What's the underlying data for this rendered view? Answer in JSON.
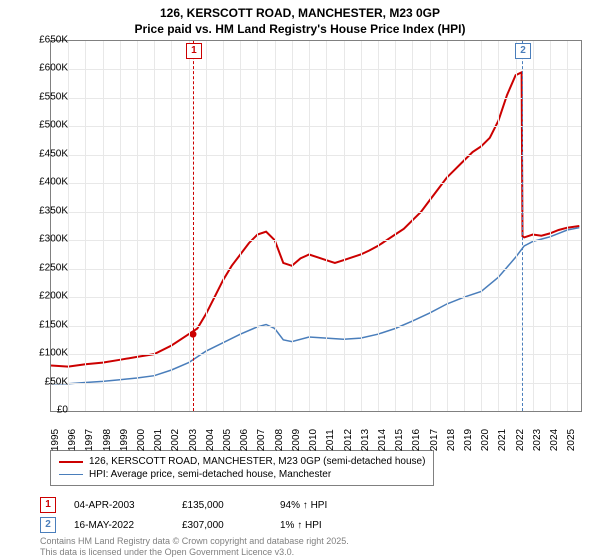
{
  "title_line1": "126, KERSCOTT ROAD, MANCHESTER, M23 0GP",
  "title_line2": "Price paid vs. HM Land Registry's House Price Index (HPI)",
  "chart": {
    "type": "line",
    "xlim": [
      1995,
      2025.8
    ],
    "ylim": [
      0,
      650
    ],
    "ytick_step": 50,
    "y_prefix": "£",
    "y_suffix": "K",
    "xticks": [
      1995,
      1996,
      1997,
      1998,
      1999,
      2000,
      2001,
      2002,
      2003,
      2004,
      2005,
      2006,
      2007,
      2008,
      2009,
      2010,
      2011,
      2012,
      2013,
      2014,
      2015,
      2016,
      2017,
      2018,
      2019,
      2020,
      2021,
      2022,
      2023,
      2024,
      2025
    ],
    "background_color": "#ffffff",
    "grid_color": "#e8e8e8",
    "border_color": "#808080",
    "series": [
      {
        "name": "price_paid",
        "color": "#cc0000",
        "width": 2,
        "data": [
          [
            1995,
            80
          ],
          [
            1996,
            78
          ],
          [
            1997,
            82
          ],
          [
            1998,
            85
          ],
          [
            1999,
            90
          ],
          [
            2000,
            95
          ],
          [
            2001,
            100
          ],
          [
            2002,
            115
          ],
          [
            2003,
            135
          ],
          [
            2003.5,
            145
          ],
          [
            2004,
            170
          ],
          [
            2004.5,
            200
          ],
          [
            2005,
            230
          ],
          [
            2005.5,
            255
          ],
          [
            2006,
            275
          ],
          [
            2006.5,
            295
          ],
          [
            2007,
            310
          ],
          [
            2007.5,
            315
          ],
          [
            2008,
            300
          ],
          [
            2008.5,
            260
          ],
          [
            2009,
            255
          ],
          [
            2009.5,
            268
          ],
          [
            2010,
            275
          ],
          [
            2010.5,
            270
          ],
          [
            2011,
            265
          ],
          [
            2011.5,
            260
          ],
          [
            2012,
            265
          ],
          [
            2012.5,
            270
          ],
          [
            2013,
            275
          ],
          [
            2013.5,
            282
          ],
          [
            2014,
            290
          ],
          [
            2014.5,
            300
          ],
          [
            2015,
            310
          ],
          [
            2015.5,
            320
          ],
          [
            2016,
            335
          ],
          [
            2016.5,
            350
          ],
          [
            2017,
            370
          ],
          [
            2017.5,
            390
          ],
          [
            2018,
            410
          ],
          [
            2018.5,
            425
          ],
          [
            2019,
            440
          ],
          [
            2019.5,
            455
          ],
          [
            2020,
            465
          ],
          [
            2020.5,
            480
          ],
          [
            2021,
            510
          ],
          [
            2021.5,
            555
          ],
          [
            2022,
            590
          ],
          [
            2022.35,
            595
          ],
          [
            2022.4,
            307
          ],
          [
            2022.5,
            305
          ],
          [
            2023,
            310
          ],
          [
            2023.5,
            308
          ],
          [
            2024,
            312
          ],
          [
            2024.5,
            318
          ],
          [
            2025,
            322
          ],
          [
            2025.7,
            325
          ]
        ]
      },
      {
        "name": "hpi",
        "color": "#4a7ebb",
        "width": 1.5,
        "data": [
          [
            1995,
            48
          ],
          [
            1996,
            48
          ],
          [
            1997,
            50
          ],
          [
            1998,
            52
          ],
          [
            1999,
            55
          ],
          [
            2000,
            58
          ],
          [
            2001,
            62
          ],
          [
            2002,
            72
          ],
          [
            2003,
            85
          ],
          [
            2004,
            105
          ],
          [
            2005,
            120
          ],
          [
            2006,
            135
          ],
          [
            2007,
            148
          ],
          [
            2007.5,
            152
          ],
          [
            2008,
            145
          ],
          [
            2008.5,
            125
          ],
          [
            2009,
            122
          ],
          [
            2010,
            130
          ],
          [
            2011,
            128
          ],
          [
            2012,
            126
          ],
          [
            2013,
            128
          ],
          [
            2014,
            135
          ],
          [
            2015,
            145
          ],
          [
            2016,
            158
          ],
          [
            2017,
            172
          ],
          [
            2018,
            188
          ],
          [
            2019,
            200
          ],
          [
            2020,
            210
          ],
          [
            2021,
            235
          ],
          [
            2022,
            270
          ],
          [
            2022.5,
            290
          ],
          [
            2023,
            298
          ],
          [
            2023.5,
            302
          ],
          [
            2024,
            306
          ],
          [
            2024.5,
            312
          ],
          [
            2025,
            318
          ],
          [
            2025.7,
            322
          ]
        ]
      }
    ],
    "markers": [
      {
        "id": "1",
        "x": 2003.25,
        "color": "#cc0000",
        "dot_y": 135
      },
      {
        "id": "2",
        "x": 2022.37,
        "color": "#4a7ebb",
        "dot_y": null
      }
    ]
  },
  "legend": {
    "items": [
      {
        "label": "126, KERSCOTT ROAD, MANCHESTER, M23 0GP (semi-detached house)",
        "color": "#cc0000",
        "width": 2
      },
      {
        "label": "HPI: Average price, semi-detached house, Manchester",
        "color": "#4a7ebb",
        "width": 1.5
      }
    ]
  },
  "events": [
    {
      "id": "1",
      "color": "#cc0000",
      "date": "04-APR-2003",
      "price": "£135,000",
      "hpi": "94% ↑ HPI"
    },
    {
      "id": "2",
      "color": "#4a7ebb",
      "date": "16-MAY-2022",
      "price": "£307,000",
      "hpi": "1% ↑ HPI"
    }
  ],
  "footer_line1": "Contains HM Land Registry data © Crown copyright and database right 2025.",
  "footer_line2": "This data is licensed under the Open Government Licence v3.0."
}
